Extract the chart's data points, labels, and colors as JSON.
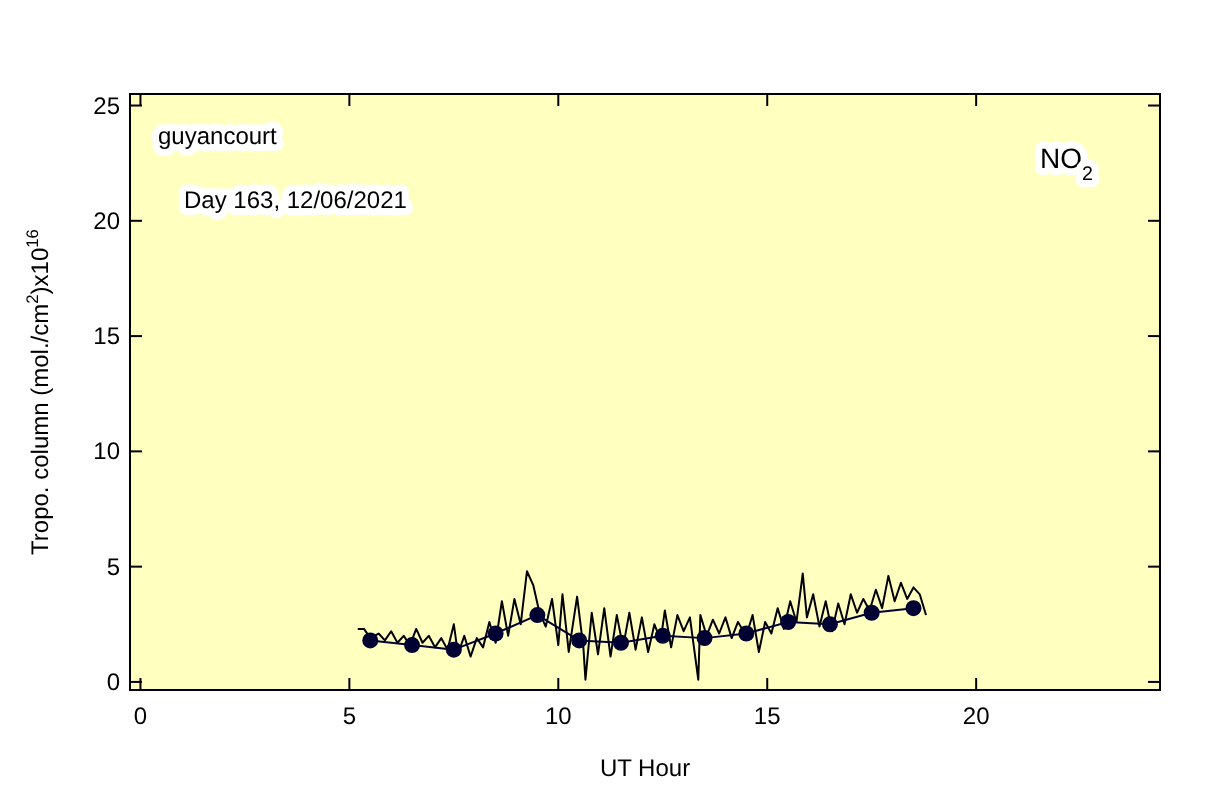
{
  "chart_data": {
    "type": "line",
    "xlabel": "UT Hour",
    "ylabel": "Tropo. column (mol./cm$^{2}$)x10$^{16}$",
    "annotations": [
      "guyancourt",
      "Day 163, 12/06/2021",
      "NO$_{2}$"
    ],
    "xlim": [
      -0.25,
      24.4
    ],
    "ylim": [
      -0.35,
      25.5
    ],
    "xticks": [
      0,
      5,
      10,
      15,
      20
    ],
    "yticks": [
      0,
      5,
      10,
      15,
      20,
      25
    ],
    "grid": false,
    "series": [
      {
        "color": "#000000",
        "marker": "none",
        "x": [
          5.2,
          5.35,
          5.5,
          5.7,
          5.85,
          6.0,
          6.15,
          6.3,
          6.45,
          6.6,
          6.75,
          6.9,
          7.05,
          7.2,
          7.35,
          7.5,
          7.6,
          7.75,
          7.9,
          8.05,
          8.2,
          8.35,
          8.5,
          8.65,
          8.8,
          8.95,
          9.1,
          9.25,
          9.4,
          9.55,
          9.7,
          9.85,
          10.0,
          10.1,
          10.25,
          10.45,
          10.6,
          10.65,
          10.8,
          10.95,
          11.1,
          11.25,
          11.4,
          11.55,
          11.7,
          11.85,
          12.0,
          12.15,
          12.3,
          12.45,
          12.55,
          12.7,
          12.85,
          13.0,
          13.15,
          13.35,
          13.4,
          13.55,
          13.7,
          13.85,
          14.0,
          14.15,
          14.3,
          14.5,
          14.65,
          14.8,
          14.95,
          15.1,
          15.25,
          15.4,
          15.55,
          15.7,
          15.85,
          15.95,
          16.1,
          16.25,
          16.4,
          16.55,
          16.7,
          16.85,
          17.0,
          17.15,
          17.3,
          17.45,
          17.6,
          17.75,
          17.9,
          18.05,
          18.2,
          18.35,
          18.5,
          18.65,
          18.8
        ],
        "values": [
          2.3,
          2.3,
          1.9,
          2.1,
          1.8,
          2.2,
          1.7,
          2.0,
          1.6,
          2.3,
          1.7,
          2.0,
          1.5,
          1.9,
          1.4,
          2.5,
          1.2,
          2.0,
          1.1,
          1.9,
          1.5,
          2.6,
          1.7,
          3.5,
          2.0,
          3.6,
          2.5,
          4.8,
          4.2,
          3.0,
          2.4,
          3.6,
          1.6,
          3.8,
          1.3,
          3.7,
          1.5,
          0.1,
          3.0,
          1.2,
          3.2,
          1.1,
          2.9,
          1.5,
          3.0,
          1.4,
          2.8,
          1.3,
          2.5,
          1.8,
          3.1,
          1.5,
          2.9,
          2.2,
          2.8,
          0.1,
          2.9,
          2.0,
          2.7,
          2.1,
          2.8,
          1.9,
          2.6,
          2.0,
          2.9,
          1.3,
          2.6,
          2.1,
          3.2,
          2.3,
          3.5,
          2.6,
          4.7,
          2.8,
          3.8,
          2.4,
          3.5,
          2.2,
          3.4,
          2.5,
          3.8,
          3.0,
          3.6,
          3.1,
          4.0,
          3.2,
          4.6,
          3.5,
          4.3,
          3.6,
          4.1,
          3.8,
          2.9
        ]
      },
      {
        "color": "#000033",
        "marker": "circle",
        "x": [
          5.5,
          6.5,
          7.5,
          8.5,
          9.5,
          10.5,
          11.5,
          12.5,
          13.5,
          14.5,
          15.5,
          16.5,
          17.5,
          18.5
        ],
        "values": [
          1.8,
          1.6,
          1.4,
          2.1,
          2.9,
          1.8,
          1.7,
          2.0,
          1.9,
          2.1,
          2.6,
          2.5,
          3.0,
          3.2
        ]
      }
    ]
  }
}
